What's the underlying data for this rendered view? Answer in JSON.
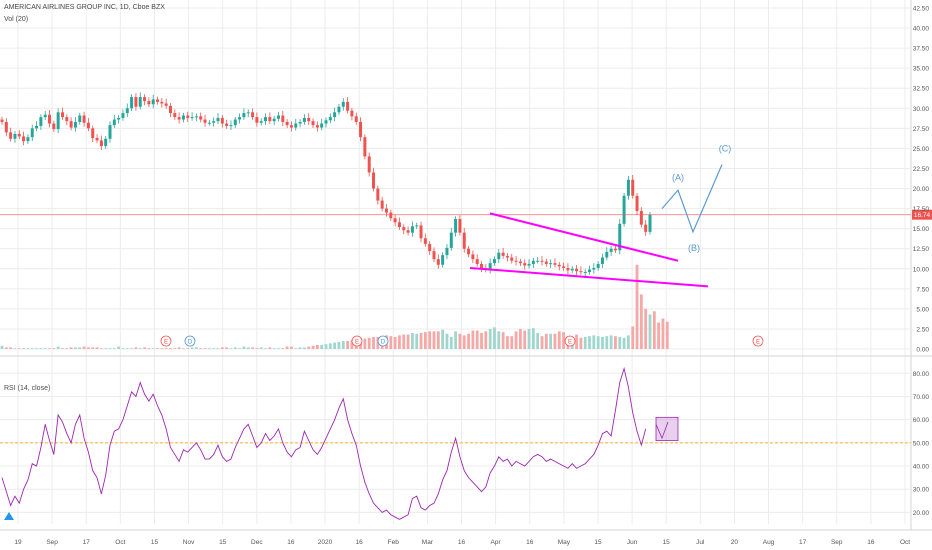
{
  "header": {
    "symbol_line": "AMERICAN AIRLINES GROUP INC, 1D, Cboe BZX",
    "volume_label": "Vol (20)",
    "rsi_label": "RSI (14, close)"
  },
  "colors": {
    "up": "#26a69a",
    "down": "#ef5350",
    "vol_up": "#9fd7cf",
    "vol_down": "#f6a8a6",
    "trendline": "#ff00ff",
    "wave": "#5b9bd5",
    "rsi": "#9c27b0",
    "rsi_mid": "#ff9800",
    "price_line": "#ef5350",
    "grid": "#ececec",
    "axis_text": "#555555"
  },
  "chart_data": [
    {
      "type": "candlestick",
      "title": "AMERICAN AIRLINES GROUP INC, 1D, Cboe BZX",
      "y_ticks": [
        "42.50",
        "40.00",
        "37.50",
        "35.00",
        "32.50",
        "30.00",
        "27.50",
        "25.00",
        "22.50",
        "20.00",
        "17.50",
        "15.00",
        "12.50",
        "10.00",
        "7.50",
        "5.00",
        "2.50",
        "0.00"
      ],
      "ylim": [
        0,
        42.5
      ],
      "last_price": "16.74",
      "x_ticks": [
        "19",
        "Sep",
        "17",
        "Oct",
        "15",
        "Nov",
        "15",
        "Dec",
        "16",
        "2020",
        "16",
        "Feb",
        "Mar",
        "16",
        "Apr",
        "16",
        "May",
        "15",
        "Jun",
        "15",
        "Jul",
        "20",
        "Aug",
        "17",
        "Sep",
        "16",
        "Oct"
      ],
      "close_path": [
        28.3,
        27,
        26.2,
        26.8,
        26.5,
        25.9,
        26.4,
        27.5,
        27.8,
        28.9,
        29.2,
        28.1,
        27.4,
        29.5,
        28.9,
        28.4,
        27.6,
        28.3,
        29.1,
        28.2,
        27.5,
        26.3,
        26,
        25.3,
        26.2,
        27.9,
        28.6,
        28.8,
        29.4,
        30,
        31.4,
        30.2,
        31.4,
        30.9,
        30.5,
        31.1,
        30.8,
        30.6,
        30.3,
        29.4,
        28.9,
        28.6,
        29.1,
        28.8,
        28.9,
        29,
        28.6,
        28.2,
        28.2,
        28.4,
        28.8,
        28.1,
        27.8,
        27.9,
        28.6,
        28.9,
        29.4,
        29.5,
        28.9,
        28.2,
        28.4,
        28.9,
        28.4,
        28.7,
        29.1,
        28.3,
        27.9,
        27.6,
        28.1,
        28.3,
        28.8,
        28.4,
        27.9,
        27.6,
        28.1,
        28.5,
        28.9,
        29.5,
        30.2,
        30.8,
        29.7,
        29,
        28.3,
        26.4,
        24,
        22,
        20,
        18.5,
        17.5,
        17,
        16.3,
        15.8,
        15.2,
        14.8,
        14.5,
        15.3,
        15.4,
        13.8,
        13.1,
        12.2,
        11.2,
        10.5,
        11.7,
        12.6,
        14.5,
        16.2,
        14.5,
        12.5,
        11.8,
        11.2,
        10.6,
        10.1,
        9.9,
        10.7,
        11.2,
        12,
        11.6,
        11.4,
        11,
        10.9,
        10.7,
        10.4,
        10.6,
        11,
        11,
        10.9,
        10.6,
        10.7,
        10.5,
        10.3,
        10.1,
        9.8,
        10,
        9.7,
        9.6,
        9.6,
        9.9,
        10.1,
        10.6,
        11.4,
        12.1,
        12.5,
        12.3,
        15.6,
        19.1,
        21.1,
        19.1,
        17.2,
        15.5,
        14.6,
        16.74
      ],
      "annotations": [
        "(A)",
        "(B)",
        "(C)"
      ],
      "event_markers": [
        "E",
        "D",
        "E",
        "D",
        "E",
        "E"
      ]
    },
    {
      "type": "bar",
      "title": "Vol (20)",
      "volume_path": [
        0.4,
        0.2,
        0.2,
        0.1,
        0.1,
        0.1,
        0.1,
        0.1,
        0.1,
        0.1,
        0.1,
        0.1,
        0.1,
        0.3,
        0.1,
        0.1,
        0.2,
        0.2,
        0.2,
        0.3,
        0.2,
        0.2,
        0.2,
        0.1,
        0.1,
        0.1,
        0.1,
        0.3,
        0.1,
        0.1,
        0.1,
        0.2,
        0.1,
        0.2,
        0.1,
        0.1,
        0.1,
        0.1,
        0.1,
        0.1,
        0.1,
        0.2,
        0.1,
        0.1,
        0.2,
        0.2,
        0.1,
        0.1,
        0.1,
        0.1,
        0.1,
        0.2,
        0.2,
        0.1,
        0.2,
        0.1,
        0.3,
        0.2,
        0.2,
        0.1,
        0.2,
        0.1,
        0.2,
        0.1,
        0.1,
        0.1,
        0.3,
        0.3,
        0.1,
        0.2,
        0.2,
        0.3,
        0.4,
        0.5,
        0.5,
        0.6,
        0.7,
        0.8,
        0.9,
        1,
        1,
        1.1,
        1.2,
        1.3,
        1.3,
        1.4,
        1.5,
        1.5,
        1.6,
        1.7,
        1.6,
        1.5,
        1.7,
        1.8,
        1.8,
        2,
        1.9,
        2,
        2.1,
        2.2,
        2.2,
        2.2,
        2.4,
        1.9,
        1.5,
        2.2,
        1.9,
        1.7,
        1.9,
        2.3,
        2.3,
        2,
        2.2,
        2.5,
        2.7,
        2.2,
        2.1,
        1.6,
        1.6,
        2.2,
        2.5,
        2.3,
        2.5,
        2.6,
        2,
        1.6,
        1.9,
        1.9,
        1.9,
        2.2,
        2.1,
        1.4,
        1.2,
        1.8,
        1.4,
        1.5,
        1.6,
        1.7,
        1.6,
        1.5,
        1.6,
        1.7,
        1.6,
        1.5,
        1.4,
        1.7,
        2.8,
        10.5,
        6.8,
        5,
        4.3,
        4.7,
        3.3,
        3.8,
        3.4
      ]
    },
    {
      "type": "line",
      "title": "RSI (14, close)",
      "y_ticks": [
        "80.00",
        "70.00",
        "60.00",
        "50.00",
        "40.00",
        "30.00",
        "20.00"
      ],
      "ylim": [
        15,
        84
      ],
      "midline": 50,
      "rsi_path": [
        35,
        29,
        23,
        27,
        24,
        30,
        34,
        41,
        40,
        48,
        58,
        51,
        45,
        62,
        59,
        54,
        50,
        58,
        62,
        52,
        46,
        38,
        35,
        28,
        36,
        49,
        55,
        56,
        60,
        66,
        72,
        70,
        76,
        71,
        68,
        71,
        66,
        62,
        56,
        48,
        45,
        42,
        47,
        46,
        48,
        50,
        47,
        43,
        43,
        45,
        49,
        44,
        42,
        43,
        48,
        52,
        56,
        58,
        53,
        48,
        50,
        54,
        51,
        53,
        56,
        50,
        46,
        44,
        47,
        48,
        55,
        51,
        47,
        45,
        48,
        52,
        56,
        60,
        65,
        69,
        60,
        54,
        49,
        40,
        33,
        28,
        24,
        22,
        20,
        21,
        19,
        18,
        17,
        18,
        19,
        26,
        27,
        22,
        21,
        23,
        24,
        28,
        34,
        38,
        46,
        52,
        44,
        38,
        35,
        33,
        31,
        29,
        31,
        37,
        40,
        44,
        42,
        43,
        40,
        42,
        41,
        40,
        42,
        44,
        45,
        44,
        42,
        43,
        42,
        41,
        40,
        39,
        41,
        39,
        40,
        41,
        43,
        45,
        49,
        54,
        55,
        53,
        64,
        76,
        82,
        74,
        63,
        55,
        49,
        56
      ],
      "box_annotation": "RSI pullback box near 50-60"
    }
  ]
}
